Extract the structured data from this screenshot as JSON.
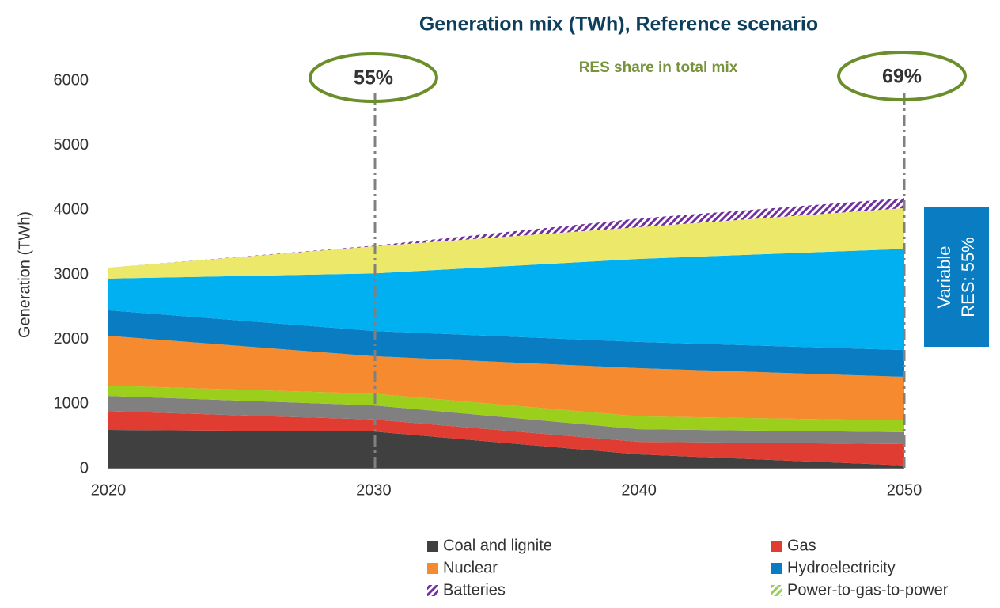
{
  "chart_data": {
    "type": "stacked_area",
    "title": "Generation mix (TWh), Reference scenario",
    "ylabel": "Generation (TWh)",
    "annotations": [
      "55%",
      "69%",
      "RES share in total mix"
    ],
    "side_label": [
      "Variable",
      "RES: 55%"
    ],
    "x": [
      2020,
      2030,
      2040,
      2050
    ],
    "xlim": [
      2020,
      2050
    ],
    "xticks": [
      2020,
      2030,
      2040,
      2050
    ],
    "ylim": [
      0,
      6000
    ],
    "yticks": [
      0,
      1000,
      2000,
      3000,
      4000,
      5000,
      6000
    ],
    "series": [
      {
        "name": "Coal and lignite",
        "color": "#404040",
        "values": [
          600,
          575,
          220,
          50
        ]
      },
      {
        "name": "Gas",
        "color": "#e03c31",
        "values": [
          290,
          185,
          195,
          330
        ]
      },
      {
        "color": "#808080",
        "values": [
          235,
          220,
          195,
          185
        ]
      },
      {
        "color": "#9bcf1c",
        "values": [
          160,
          180,
          200,
          180
        ]
      },
      {
        "name": "Nuclear",
        "color": "#f58a2e",
        "values": [
          770,
          580,
          745,
          675
        ]
      },
      {
        "name": "Hydroelectricity",
        "color": "#0a7cc2",
        "values": [
          395,
          390,
          405,
          415
        ]
      },
      {
        "color": "#00b0f0",
        "values": [
          490,
          890,
          1285,
          1565
        ]
      },
      {
        "color": "#ece86a",
        "values": [
          170,
          420,
          490,
          630
        ]
      },
      {
        "name": "Batteries",
        "color": "#7030a0",
        "hatch": true,
        "values": [
          0,
          10,
          135,
          155
        ]
      },
      {
        "name": "Power-to-gas-to-power",
        "color": "#92d050",
        "hatch": true,
        "values": [
          0,
          0,
          0,
          0
        ]
      }
    ]
  }
}
